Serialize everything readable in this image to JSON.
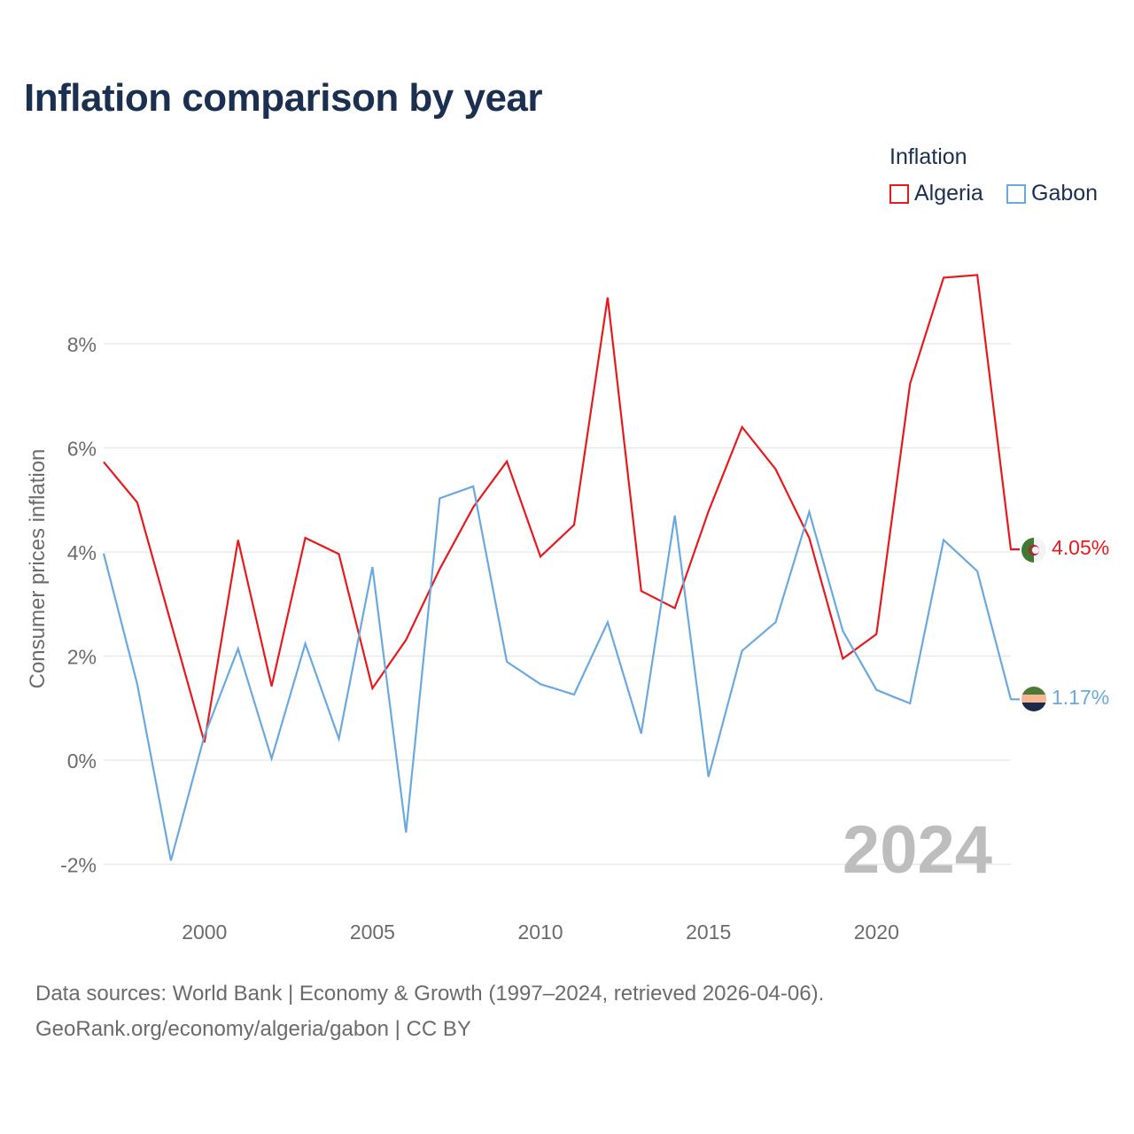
{
  "title": "Inflation comparison by year",
  "legend": {
    "title": "Inflation",
    "items": [
      {
        "label": "Algeria",
        "color": "#e8191c"
      },
      {
        "label": "Gabon",
        "color": "#6aa9e0"
      }
    ]
  },
  "watermark_year": "2024",
  "source_line1": "Data sources: World Bank | Economy & Growth (1997–2024, retrieved 2026-04-06).",
  "source_line2": "GeoRank.org/economy/algeria/gabon | CC BY",
  "chart_data": {
    "type": "line",
    "title": "Inflation comparison by year",
    "xlabel": "",
    "ylabel": "Consumer prices inflation",
    "xlim": [
      1997,
      2024
    ],
    "ylim": [
      -3,
      10.5
    ],
    "yticks": [
      -2,
      0,
      2,
      4,
      6,
      8
    ],
    "ytick_labels": [
      "-2%",
      "0%",
      "2%",
      "4%",
      "6%",
      "8%"
    ],
    "xticks": [
      2000,
      2005,
      2010,
      2015,
      2020
    ],
    "xtick_labels": [
      "2000",
      "2005",
      "2010",
      "2015",
      "2020"
    ],
    "x": [
      1997,
      1998,
      1999,
      2000,
      2001,
      2002,
      2003,
      2004,
      2005,
      2006,
      2007,
      2008,
      2009,
      2010,
      2011,
      2012,
      2013,
      2014,
      2015,
      2016,
      2017,
      2018,
      2019,
      2020,
      2021,
      2022,
      2023,
      2024
    ],
    "series": [
      {
        "name": "Algeria",
        "color": "#e8191c",
        "values": [
          5.73,
          4.95,
          2.64,
          0.34,
          4.23,
          1.42,
          4.27,
          3.96,
          1.38,
          2.31,
          3.67,
          4.86,
          5.74,
          3.91,
          4.52,
          8.89,
          3.25,
          2.92,
          4.78,
          6.4,
          5.59,
          4.27,
          1.95,
          2.42,
          7.23,
          9.27,
          9.32,
          4.05
        ],
        "end_label": "4.05%"
      },
      {
        "name": "Gabon",
        "color": "#6aa9e0",
        "values": [
          3.97,
          1.46,
          -1.93,
          0.47,
          2.14,
          0.03,
          2.24,
          0.41,
          3.71,
          -1.39,
          5.03,
          5.26,
          1.89,
          1.46,
          1.26,
          2.65,
          0.51,
          4.7,
          -0.32,
          2.1,
          2.65,
          4.77,
          2.48,
          1.35,
          1.09,
          4.23,
          3.63,
          1.17
        ],
        "end_label": "1.17%"
      }
    ]
  }
}
